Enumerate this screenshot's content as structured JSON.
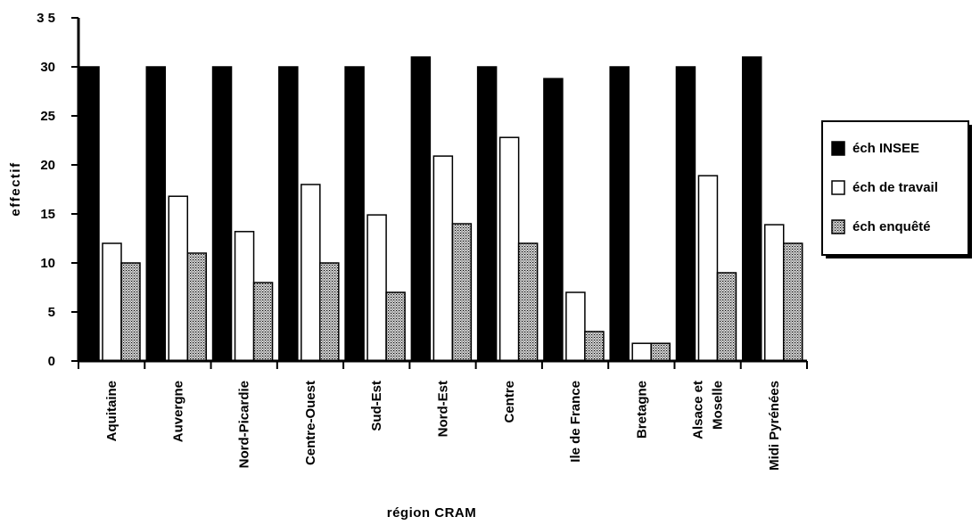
{
  "chart_data": {
    "type": "bar",
    "ylabel": "effectif",
    "xlabel": "région  CRAM",
    "ylim": [
      0,
      35
    ],
    "yticks": [
      0,
      5,
      10,
      15,
      20,
      25,
      30,
      35
    ],
    "grid": false,
    "legend_position": "right",
    "categories": [
      [
        "Aquitaine"
      ],
      [
        "Auvergne"
      ],
      [
        "Nord-Picardie"
      ],
      [
        "Centre-Ouest"
      ],
      [
        "Sud-Est"
      ],
      [
        "Nord-Est"
      ],
      [
        "Centre"
      ],
      [
        "Ile de France"
      ],
      [
        "Bretagne"
      ],
      [
        "Alsace et",
        "Moselle"
      ],
      [
        "Midi Pyrénées"
      ]
    ],
    "series": [
      {
        "name": "éch INSEE",
        "color": "#000000",
        "pattern": "solid",
        "values": [
          30,
          30,
          30,
          30,
          30,
          31,
          30,
          28.8,
          30,
          30,
          31
        ]
      },
      {
        "name": "éch de travail",
        "color": "#ffffff",
        "pattern": "outline",
        "values": [
          12,
          16.8,
          13.2,
          18,
          14.9,
          20.9,
          22.8,
          7,
          1.8,
          18.9,
          13.9
        ]
      },
      {
        "name": "éch enquêté",
        "color": "#8a8a8a",
        "pattern": "crosshatch",
        "values": [
          10,
          11,
          8,
          10,
          7,
          14,
          12,
          3,
          1.8,
          9,
          12
        ]
      }
    ]
  }
}
